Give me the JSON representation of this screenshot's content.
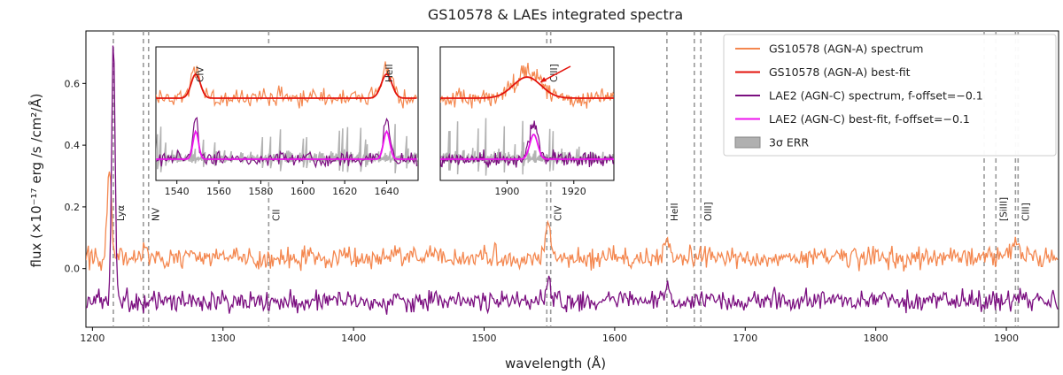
{
  "chart_data": {
    "type": "line",
    "title": "GS10578 & LAEs integrated spectra",
    "xlabel": "wavelength (Å)",
    "ylabel": "flux (×10⁻¹⁷ erg /s /cm²/Å)",
    "xlim": [
      1195,
      1940
    ],
    "ylim": [
      -0.19,
      0.77
    ],
    "x_ticks": [
      1200,
      1300,
      1400,
      1500,
      1600,
      1700,
      1800,
      1900
    ],
    "y_ticks": [
      0.0,
      0.2,
      0.4,
      0.6
    ],
    "y_tick_labels": [
      "0.0",
      "0.2",
      "0.4",
      "0.6"
    ],
    "series": [
      {
        "name": "GS10578 (AGN-A) spectrum",
        "color": "#f4874f",
        "baseline": 0.035,
        "noise": 0.03,
        "peaks": [
          {
            "x": 1213,
            "amp": 0.29,
            "w": 1.6
          },
          {
            "x": 1240,
            "amp": 0.03,
            "w": 2
          },
          {
            "x": 1549,
            "amp": 0.12,
            "w": 2
          },
          {
            "x": 1640,
            "amp": 0.06,
            "w": 2
          },
          {
            "x": 1908,
            "amp": 0.05,
            "w": 3
          }
        ]
      },
      {
        "name": "LAE2 (AGN-C) spectrum, f-offset=−0.1",
        "color": "#7b0f80",
        "baseline": -0.105,
        "noise": 0.03,
        "peaks": [
          {
            "x": 1216,
            "amp": 0.84,
            "w": 1.3
          },
          {
            "x": 1549,
            "amp": 0.08,
            "w": 1.5
          },
          {
            "x": 1640,
            "amp": 0.05,
            "w": 1.5
          }
        ]
      }
    ],
    "vlines": [
      {
        "x": 1216,
        "label": "Lyα"
      },
      {
        "x": 1239,
        "label": ""
      },
      {
        "x": 1243,
        "label": "NV"
      },
      {
        "x": 1335,
        "label": "CII"
      },
      {
        "x": 1548,
        "label": ""
      },
      {
        "x": 1551,
        "label": "CIV"
      },
      {
        "x": 1640,
        "label": "HeII"
      },
      {
        "x": 1661,
        "label": ""
      },
      {
        "x": 1666,
        "label": "OIII]"
      },
      {
        "x": 1883,
        "label": ""
      },
      {
        "x": 1892,
        "label": "[SiIII]"
      },
      {
        "x": 1907,
        "label": ""
      },
      {
        "x": 1909,
        "label": "CIII]"
      }
    ],
    "legend": {
      "location": "top-right",
      "entries": [
        {
          "label": "GS10578 (AGN-A) spectrum",
          "color": "#f4874f",
          "kind": "line"
        },
        {
          "label": "GS10578 (AGN-A) best-fit",
          "color": "#e3120b",
          "kind": "line"
        },
        {
          "label": "LAE2 (AGN-C) spectrum, f-offset=−0.1",
          "color": "#7b0f80",
          "kind": "line"
        },
        {
          "label": "LAE2 (AGN-C) best-fit, f-offset=−0.1",
          "color": "#ee12ee",
          "kind": "line"
        },
        {
          "label": "3σ ERR",
          "color": "#b0b0b0",
          "kind": "patch"
        }
      ]
    },
    "insets": [
      {
        "xlim": [
          1530,
          1655
        ],
        "x_ticks": [
          1540,
          1560,
          1580,
          1600,
          1620,
          1640
        ],
        "x_tick_labels": [
          "1540",
          "1560",
          "1580",
          "1600",
          "1620",
          "1640"
        ],
        "line_labels": [
          {
            "x": 1551,
            "label": "CIV"
          },
          {
            "x": 1641,
            "label": "HeII"
          }
        ],
        "fits": [
          {
            "x": 1549,
            "w": 2.2
          },
          {
            "x": 1640,
            "w": 2.5
          }
        ]
      },
      {
        "xlim": [
          1880,
          1932
        ],
        "x_ticks": [
          1900,
          1920
        ],
        "x_tick_labels": [
          "1900",
          "1920"
        ],
        "line_labels": [
          {
            "x": 1914,
            "label": "CIII]"
          }
        ],
        "fits": [
          {
            "x": 1906,
            "w": 4.2
          },
          {
            "x": 1908,
            "w": 1.2
          }
        ]
      }
    ]
  }
}
